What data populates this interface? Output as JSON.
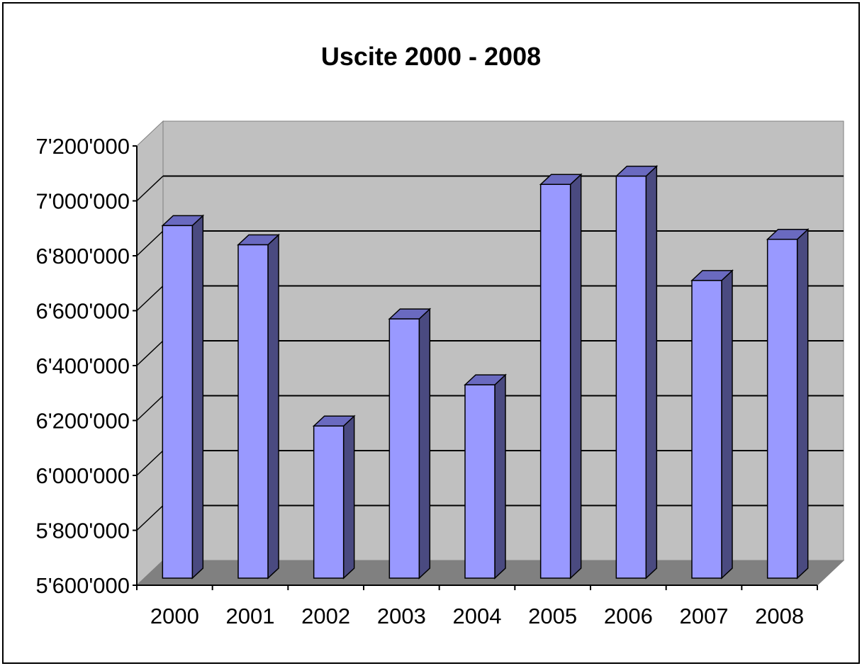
{
  "chart_data": {
    "type": "bar",
    "style": "3d-column",
    "title": "Uscite 2000 - 2008",
    "xlabel": "",
    "ylabel": "",
    "categories": [
      "2000",
      "2001",
      "2002",
      "2003",
      "2004",
      "2005",
      "2006",
      "2007",
      "2008"
    ],
    "values": [
      6910000,
      6840000,
      6180000,
      6570000,
      6330000,
      7060000,
      7090000,
      6710000,
      6860000
    ],
    "ylim": [
      5600000,
      7200000
    ],
    "yticks": [
      5600000,
      5800000,
      6000000,
      6200000,
      6400000,
      6600000,
      6800000,
      7000000,
      7200000
    ],
    "ytick_labels": [
      "5'600'000",
      "5'800'000",
      "6'000'000",
      "6'200'000",
      "6'400'000",
      "6'600'000",
      "6'800'000",
      "7'000'000",
      "7'200'000"
    ],
    "grid": true,
    "legend": "none",
    "colors": {
      "bar_front": "#9999ff",
      "bar_side": "#4a4a80",
      "bar_top": "#6a6ac0",
      "wall": "#c0c0c0",
      "floor": "#808080"
    }
  }
}
